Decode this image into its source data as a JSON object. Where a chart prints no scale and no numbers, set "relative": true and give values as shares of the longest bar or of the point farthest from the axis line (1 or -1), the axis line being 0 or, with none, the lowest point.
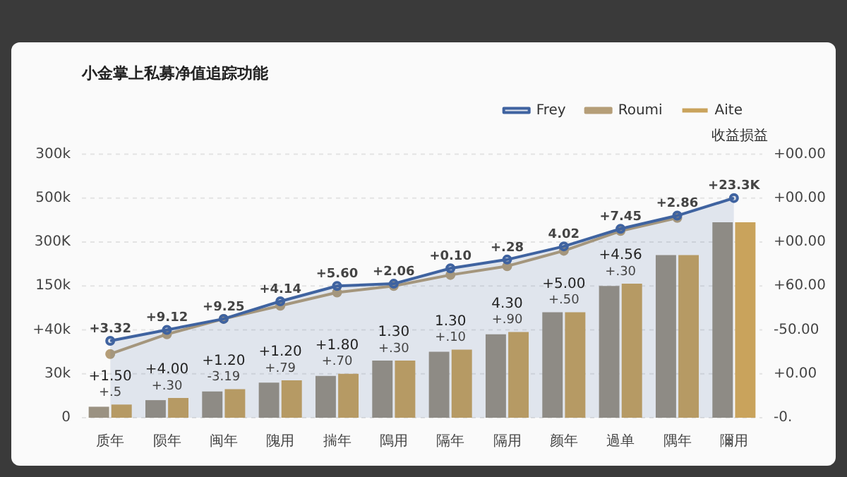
{
  "chart_data": {
    "type": "bar",
    "relative": true,
    "title": "小金掌上私募净值追踪功能",
    "y2label": "收益损益",
    "categories": [
      "质年",
      "陨年",
      "闽年",
      "隗用",
      "揣年",
      "隝用",
      "隔年",
      "隔用",
      "颜年",
      "過单",
      "隅年",
      "隬用"
    ],
    "series": [
      {
        "name": "Frey",
        "type": "area",
        "color": "#3f63a0",
        "values": [
          0.35,
          0.4,
          0.45,
          0.53,
          0.6,
          0.61,
          0.68,
          0.72,
          0.78,
          0.86,
          0.92,
          1
        ]
      },
      {
        "name": "Roumi",
        "type": "line",
        "color": "#b59e78",
        "values": [
          0.29,
          0.38,
          0.45,
          0.51,
          0.57,
          0.6,
          0.65,
          0.69,
          0.76,
          0.85,
          0.91,
          null
        ]
      },
      {
        "color": "#9b9282",
        "values": [
          0.05,
          0.08,
          0.12,
          0.16,
          0.19,
          0.26,
          0.3,
          0.38,
          0.48,
          0.6,
          0.74,
          0.89
        ]
      },
      {
        "name": "Aite",
        "color": "#c9a35c",
        "values": [
          0.06,
          0.09,
          0.13,
          0.17,
          0.2,
          0.26,
          0.31,
          0.39,
          0.48,
          0.61,
          0.74,
          0.89
        ]
      }
    ],
    "annotations": [
      "0",
      "30k",
      "+40k",
      "150k",
      "300K",
      "500k",
      "300k",
      "-0.",
      "+0.00",
      "-50.00",
      "+60.00",
      "+00.00",
      "+00.00",
      "+00.00",
      {
        "text": "+3.32",
        "x": "质年",
        "y": 0.35
      },
      {
        "text": "+9.12",
        "x": "陨年",
        "y": 0.4
      },
      {
        "text": "+9.25",
        "x": "闽年",
        "y": 0.45
      },
      {
        "text": "+4.14",
        "x": "隗用",
        "y": 0.53
      },
      {
        "text": "+5.60",
        "x": "揣年",
        "y": 0.6
      },
      {
        "text": "+2.06",
        "x": "隝用",
        "y": 0.61
      },
      {
        "text": "+0.10",
        "x": "隔年",
        "y": 0.68
      },
      {
        "text": "+.28",
        "x": "隔用",
        "y": 0.72
      },
      {
        "text": "4.02",
        "x": "颜年",
        "y": 0.78
      },
      {
        "text": "+7.45",
        "x": "過单",
        "y": 0.86
      },
      {
        "text": "+2.86",
        "x": "隅年",
        "y": 0.92
      },
      {
        "text": "+23.3K",
        "x": "隬用",
        "y": 1
      },
      {
        "text": "+.5",
        "x": "质年",
        "y": 0.06
      },
      {
        "text": "+.30",
        "x": "陨年",
        "y": 0.09
      },
      {
        "text": "-3.19",
        "x": "闽年",
        "y": 0.13
      },
      {
        "text": "+.79",
        "x": "隗用",
        "y": 0.17
      },
      {
        "text": "+.70",
        "x": "揣年",
        "y": 0.2
      },
      {
        "text": "+.30",
        "x": "隝用",
        "y": 0.26
      },
      {
        "text": "+.10",
        "x": "隔年",
        "y": 0.31
      },
      {
        "text": "+.90",
        "x": "隔用",
        "y": 0.39
      },
      {
        "text": "+.50",
        "x": "颜年",
        "y": 0.48
      },
      {
        "text": "+.30",
        "x": "過单",
        "y": 0.61
      },
      {
        "text": "+1.50",
        "x": "质年",
        "y": 0.05
      },
      {
        "text": "+4.00",
        "x": "陨年",
        "y": 0.08
      },
      {
        "text": "+1.20",
        "x": "闽年",
        "y": 0.12
      },
      {
        "text": "+1.20",
        "x": "隗用",
        "y": 0.16
      },
      {
        "text": "+1.80",
        "x": "揣年",
        "y": 0.19
      },
      {
        "text": "1.30",
        "x": "隝用",
        "y": 0.26
      },
      {
        "text": "1.30",
        "x": "隔年",
        "y": 0.3
      },
      {
        "text": "4.30",
        "x": "隔用",
        "y": 0.38
      },
      {
        "text": "+5.00",
        "x": "颜年",
        "y": 0.48
      },
      {
        "text": "+4.56",
        "x": "過单",
        "y": 0.6
      }
    ],
    "grid": "y",
    "legend": "top right",
    "marker": "circle"
  }
}
